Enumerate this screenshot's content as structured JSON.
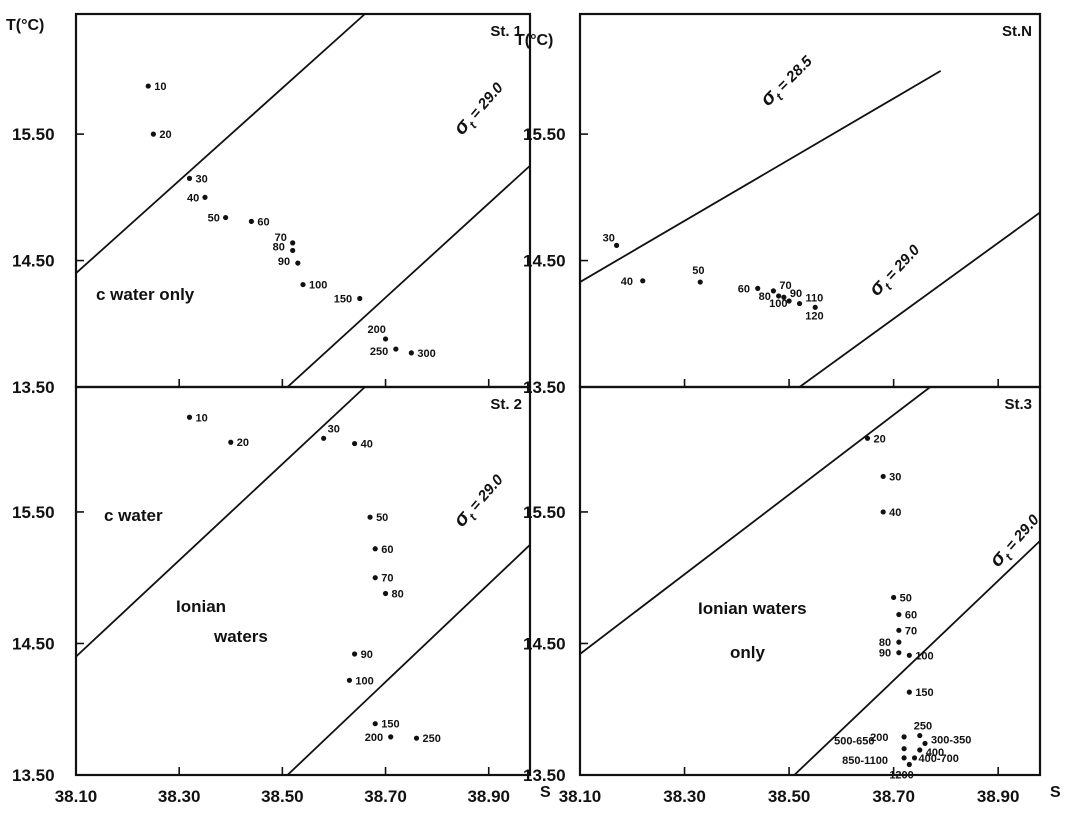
{
  "chart_data": [
    {
      "type": "scatter",
      "title": "St. 1",
      "ylabel": "T(°C)",
      "xlabel": "",
      "xlim": [
        38.1,
        38.98
      ],
      "ylim": [
        13.5,
        16.45
      ],
      "yticks": [
        "15.50",
        "14.50",
        "13.50"
      ],
      "xticks": [],
      "annotations": [
        "c  water  only"
      ],
      "isopycnals": [
        {
          "label": "",
          "line": [
            [
              38.1,
              14.4
            ],
            [
              38.66,
              16.45
            ]
          ]
        },
        {
          "label": "σt = 29.0",
          "line": [
            [
              38.51,
              13.5
            ],
            [
              38.98,
              15.25
            ]
          ]
        }
      ],
      "points": [
        {
          "label": "10",
          "s": 38.24,
          "t": 15.88
        },
        {
          "label": "20",
          "s": 38.25,
          "t": 15.5
        },
        {
          "label": "30",
          "s": 38.32,
          "t": 15.15
        },
        {
          "label": "40",
          "s": 38.35,
          "t": 15.0
        },
        {
          "label": "50",
          "s": 38.39,
          "t": 14.84
        },
        {
          "label": "60",
          "s": 38.44,
          "t": 14.81
        },
        {
          "label": "70",
          "s": 38.52,
          "t": 14.64
        },
        {
          "label": "80",
          "s": 38.52,
          "t": 14.58
        },
        {
          "label": "90",
          "s": 38.53,
          "t": 14.48
        },
        {
          "label": "100",
          "s": 38.54,
          "t": 14.31
        },
        {
          "label": "150",
          "s": 38.65,
          "t": 14.2
        },
        {
          "label": "200",
          "s": 38.7,
          "t": 13.88
        },
        {
          "label": "250",
          "s": 38.72,
          "t": 13.8
        },
        {
          "label": "300",
          "s": 38.75,
          "t": 13.77
        }
      ]
    },
    {
      "type": "scatter",
      "title": "St.N",
      "ylabel": "T(°C)",
      "xlabel": "",
      "xlim": [
        38.1,
        38.98
      ],
      "ylim": [
        13.5,
        16.45
      ],
      "yticks": [
        "15.50",
        "14.50",
        "13.50"
      ],
      "xticks": [],
      "annotations": [],
      "isopycnals": [
        {
          "label": "σt = 28.5",
          "line": [
            [
              38.1,
              14.33
            ],
            [
              38.79,
              16.0
            ]
          ]
        },
        {
          "label": "σt = 29.0",
          "line": [
            [
              38.52,
              13.5
            ],
            [
              38.98,
              14.88
            ]
          ]
        }
      ],
      "points": [
        {
          "label": "30",
          "s": 38.17,
          "t": 14.62
        },
        {
          "label": "40",
          "s": 38.22,
          "t": 14.34
        },
        {
          "label": "50",
          "s": 38.33,
          "t": 14.33
        },
        {
          "label": "60",
          "s": 38.44,
          "t": 14.28
        },
        {
          "label": "70",
          "s": 38.47,
          "t": 14.26
        },
        {
          "label": "80",
          "s": 38.48,
          "t": 14.22
        },
        {
          "label": "90",
          "s": 38.49,
          "t": 14.21
        },
        {
          "label": "100",
          "s": 38.5,
          "t": 14.18
        },
        {
          "label": "110",
          "s": 38.52,
          "t": 14.16
        },
        {
          "label": "120",
          "s": 38.55,
          "t": 14.13
        }
      ]
    },
    {
      "type": "scatter",
      "title": "St. 2",
      "ylabel": "",
      "xlabel": "S",
      "xlim": [
        38.1,
        38.98
      ],
      "ylim": [
        13.5,
        16.45
      ],
      "yticks": [
        "15.50",
        "14.50",
        "13.50"
      ],
      "xticks": [
        "38.10",
        "38.30",
        "38.50",
        "38.70",
        "38.90"
      ],
      "annotations": [
        "c  water",
        "Ionian",
        "waters"
      ],
      "isopycnals": [
        {
          "label": "",
          "line": [
            [
              38.1,
              14.4
            ],
            [
              38.66,
              16.45
            ]
          ]
        },
        {
          "label": "σt = 29.0",
          "line": [
            [
              38.51,
              13.5
            ],
            [
              38.98,
              15.25
            ]
          ]
        }
      ],
      "points": [
        {
          "label": "10",
          "s": 38.32,
          "t": 16.22
        },
        {
          "label": "20",
          "s": 38.4,
          "t": 16.03
        },
        {
          "label": "30",
          "s": 38.58,
          "t": 16.06
        },
        {
          "label": "40",
          "s": 38.64,
          "t": 16.02
        },
        {
          "label": "50",
          "s": 38.67,
          "t": 15.46
        },
        {
          "label": "60",
          "s": 38.68,
          "t": 15.22
        },
        {
          "label": "70",
          "s": 38.68,
          "t": 15.0
        },
        {
          "label": "80",
          "s": 38.7,
          "t": 14.88
        },
        {
          "label": "90",
          "s": 38.64,
          "t": 14.42
        },
        {
          "label": "100",
          "s": 38.63,
          "t": 14.22
        },
        {
          "label": "150",
          "s": 38.68,
          "t": 13.89
        },
        {
          "label": "200",
          "s": 38.71,
          "t": 13.79
        },
        {
          "label": "250",
          "s": 38.76,
          "t": 13.78
        }
      ]
    },
    {
      "type": "scatter",
      "title": "St.3",
      "ylabel": "",
      "xlabel": "S",
      "xlim": [
        38.1,
        38.98
      ],
      "ylim": [
        13.5,
        16.45
      ],
      "yticks": [
        "15.50",
        "14.50",
        "13.50"
      ],
      "xticks": [
        "38.10",
        "38.30",
        "38.50",
        "38.70",
        "38.90"
      ],
      "annotations": [
        "Ionian  waters",
        "only"
      ],
      "isopycnals": [
        {
          "label": "",
          "line": [
            [
              38.1,
              14.42
            ],
            [
              38.77,
              16.45
            ]
          ]
        },
        {
          "label": "σt = 29.0",
          "line": [
            [
              38.51,
              13.5
            ],
            [
              38.98,
              15.28
            ]
          ]
        }
      ],
      "points": [
        {
          "label": "20",
          "s": 38.65,
          "t": 16.06
        },
        {
          "label": "30",
          "s": 38.68,
          "t": 15.77
        },
        {
          "label": "40",
          "s": 38.68,
          "t": 15.5
        },
        {
          "label": "50",
          "s": 38.7,
          "t": 14.85
        },
        {
          "label": "60",
          "s": 38.71,
          "t": 14.72
        },
        {
          "label": "70",
          "s": 38.71,
          "t": 14.6
        },
        {
          "label": "80",
          "s": 38.71,
          "t": 14.51
        },
        {
          "label": "90",
          "s": 38.71,
          "t": 14.43
        },
        {
          "label": "100",
          "s": 38.73,
          "t": 14.41
        },
        {
          "label": "150",
          "s": 38.73,
          "t": 14.13
        },
        {
          "label": "200",
          "s": 38.72,
          "t": 13.79
        },
        {
          "label": "250",
          "s": 38.75,
          "t": 13.8
        },
        {
          "label": "300-350",
          "s": 38.76,
          "t": 13.74
        },
        {
          "label": "400",
          "s": 38.75,
          "t": 13.69
        },
        {
          "label": "400-700",
          "s": 38.74,
          "t": 13.63
        },
        {
          "label": "500-650",
          "s": 38.72,
          "t": 13.7
        },
        {
          "label": "850-1100",
          "s": 38.72,
          "t": 13.63
        },
        {
          "label": "1200",
          "s": 38.73,
          "t": 13.58
        }
      ]
    }
  ]
}
